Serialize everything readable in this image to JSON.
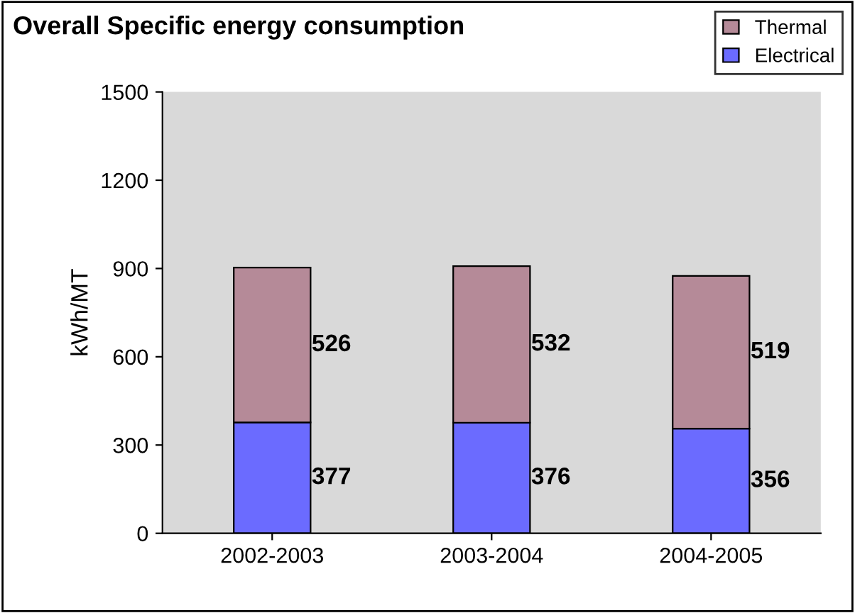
{
  "chart_data": {
    "type": "bar",
    "title": "Overall Specific energy consumption",
    "ylabel": "kWh/MT",
    "categories": [
      "2002-2003",
      "2003-2004",
      "2004-2005"
    ],
    "stacked": true,
    "series": [
      {
        "name": "Electrical",
        "color": "#6b6bff",
        "values": [
          377,
          376,
          356
        ]
      },
      {
        "name": "Thermal",
        "color": "#b58a98",
        "values": [
          526,
          532,
          519
        ]
      }
    ],
    "ylim": [
      0,
      1500
    ],
    "yticks": [
      0,
      300,
      600,
      900,
      1200,
      1500
    ],
    "data_labels": true,
    "legend": "top right",
    "grid": false
  }
}
